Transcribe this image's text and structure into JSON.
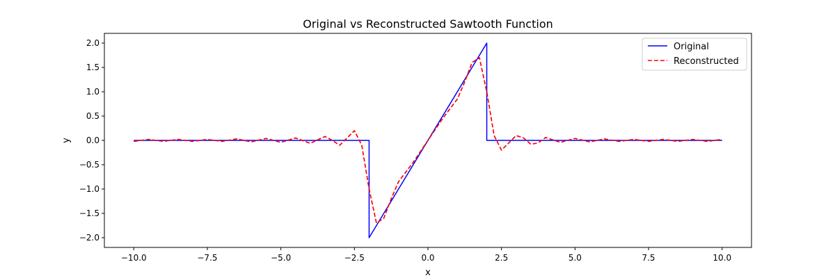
{
  "chart_data": {
    "type": "line",
    "title": "Original vs Reconstructed Sawtooth Function",
    "xlabel": "x",
    "ylabel": "y",
    "xlim": [
      -11,
      11
    ],
    "ylim": [
      -2.2,
      2.2
    ],
    "xticks": [
      -10,
      -7.5,
      -5,
      -2.5,
      0,
      2.5,
      5,
      7.5,
      10
    ],
    "xtick_labels": [
      "−10.0",
      "−7.5",
      "−5.0",
      "−2.5",
      "0.0",
      "2.5",
      "5.0",
      "7.5",
      "10.0"
    ],
    "yticks": [
      -2,
      -1.5,
      -1,
      -0.5,
      0,
      0.5,
      1,
      1.5,
      2
    ],
    "ytick_labels": [
      "−2.0",
      "−1.5",
      "−1.0",
      "−0.5",
      "0.0",
      "0.5",
      "1.0",
      "1.5",
      "2.0"
    ],
    "grid": false,
    "legend_position": "top-right",
    "series": [
      {
        "name": "Original",
        "color": "#0000ff",
        "style": "solid",
        "x": [
          -10,
          -2,
          -2,
          2,
          2,
          10
        ],
        "y": [
          0,
          0,
          -2,
          2,
          0,
          0
        ]
      },
      {
        "name": "Reconstructed",
        "color": "#ff0000",
        "style": "dashed",
        "x": [
          -10,
          -9.5,
          -9,
          -8.5,
          -8,
          -7.5,
          -7,
          -6.5,
          -6,
          -5.5,
          -5,
          -4.5,
          -4,
          -3.5,
          -3.25,
          -3,
          -2.75,
          -2.5,
          -2.25,
          -2,
          -1.75,
          -1.5,
          -1.25,
          -1,
          -0.5,
          0,
          0.5,
          1,
          1.25,
          1.5,
          1.75,
          2,
          2.25,
          2.5,
          2.75,
          3,
          3.25,
          3.5,
          3.75,
          4,
          4.5,
          5,
          5.5,
          6,
          6.5,
          7,
          7.5,
          8,
          8.5,
          9,
          9.5,
          10
        ],
        "y": [
          -0.02,
          0.02,
          -0.02,
          0.02,
          -0.02,
          0.02,
          -0.02,
          0.03,
          -0.03,
          0.04,
          -0.04,
          0.05,
          -0.06,
          0.08,
          0.0,
          -0.1,
          0.05,
          0.2,
          -0.1,
          -1.0,
          -1.7,
          -1.6,
          -1.2,
          -0.85,
          -0.45,
          0.0,
          0.45,
          0.85,
          1.2,
          1.6,
          1.7,
          1.0,
          0.1,
          -0.2,
          -0.05,
          0.1,
          0.05,
          -0.08,
          -0.05,
          0.06,
          -0.04,
          0.04,
          -0.03,
          0.03,
          -0.02,
          0.02,
          -0.02,
          0.02,
          -0.02,
          0.02,
          -0.02,
          0.02
        ]
      }
    ]
  }
}
